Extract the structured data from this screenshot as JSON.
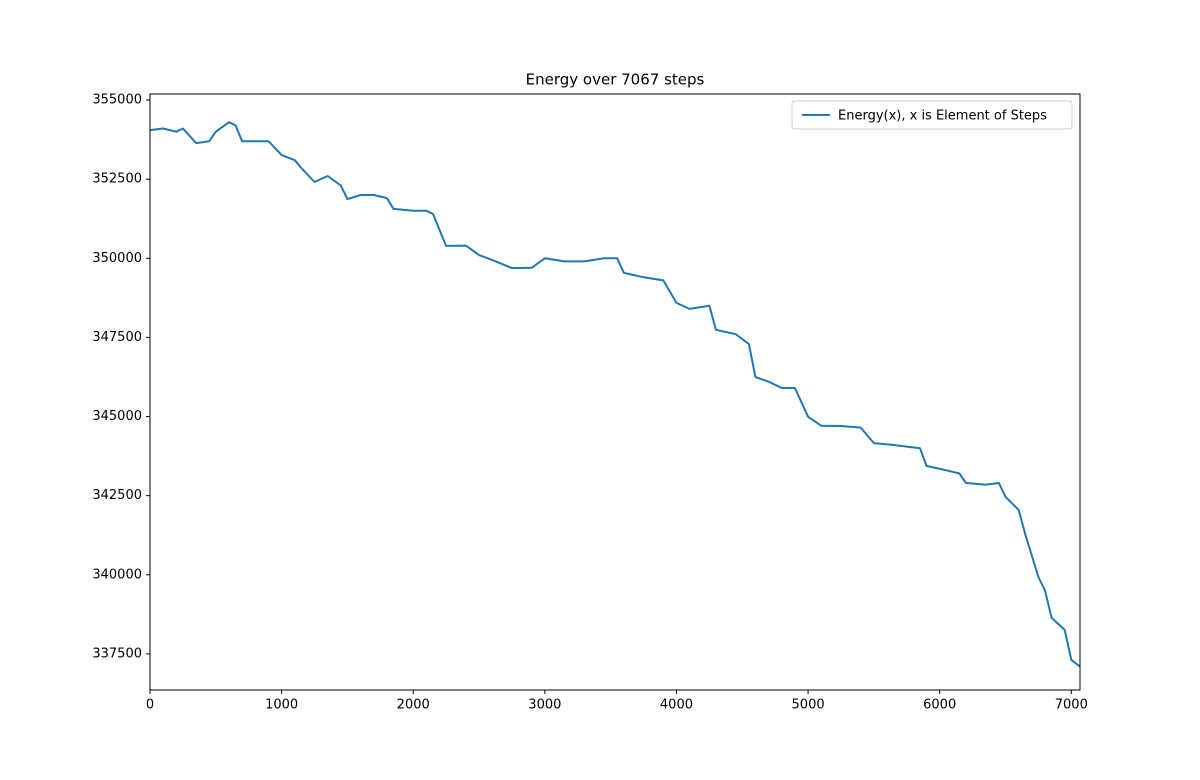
{
  "chart_data": {
    "type": "line",
    "title": "Energy over  7067 steps",
    "x": [
      0,
      100,
      200,
      250,
      350,
      450,
      500,
      600,
      650,
      700,
      800,
      900,
      1000,
      1100,
      1150,
      1250,
      1350,
      1450,
      1500,
      1600,
      1700,
      1800,
      1850,
      2000,
      2100,
      2150,
      2250,
      2400,
      2500,
      2600,
      2750,
      2900,
      3000,
      3150,
      3300,
      3450,
      3550,
      3600,
      3750,
      3900,
      4000,
      4100,
      4250,
      4300,
      4450,
      4550,
      4600,
      4700,
      4800,
      4900,
      5000,
      5100,
      5250,
      5400,
      5500,
      5650,
      5850,
      5900,
      6050,
      6150,
      6200,
      6350,
      6450,
      6500,
      6600,
      6650,
      6750,
      6800,
      6850,
      6950,
      7000,
      7066
    ],
    "series": [
      {
        "name": "Energy(x), x is Element of Steps",
        "color": "#1f77b4",
        "values": [
          354050,
          354100,
          354000,
          354100,
          353640,
          353700,
          354000,
          354300,
          354200,
          353700,
          353700,
          353700,
          353260,
          353100,
          352850,
          352410,
          352600,
          352300,
          351870,
          352000,
          352000,
          351900,
          351560,
          351500,
          351500,
          351400,
          350390,
          350400,
          350100,
          349950,
          349690,
          349700,
          350000,
          349900,
          349900,
          350000,
          350000,
          349540,
          349400,
          349300,
          348590,
          348400,
          348500,
          347740,
          347600,
          347290,
          346250,
          346100,
          345900,
          345900,
          344990,
          344710,
          344700,
          344650,
          344160,
          344100,
          344000,
          343440,
          343300,
          343200,
          342900,
          342850,
          342900,
          342460,
          342050,
          341290,
          339930,
          339500,
          338640,
          338260,
          337310,
          337100
        ]
      }
    ],
    "xlim": [
      0,
      7066
    ],
    "ylim": [
      336360,
      355190
    ],
    "xticks": [
      0,
      1000,
      2000,
      3000,
      4000,
      5000,
      6000,
      7000
    ],
    "yticks": [
      337500,
      340000,
      342500,
      345000,
      347500,
      350000,
      352500,
      355000
    ],
    "legend": "upper right"
  }
}
